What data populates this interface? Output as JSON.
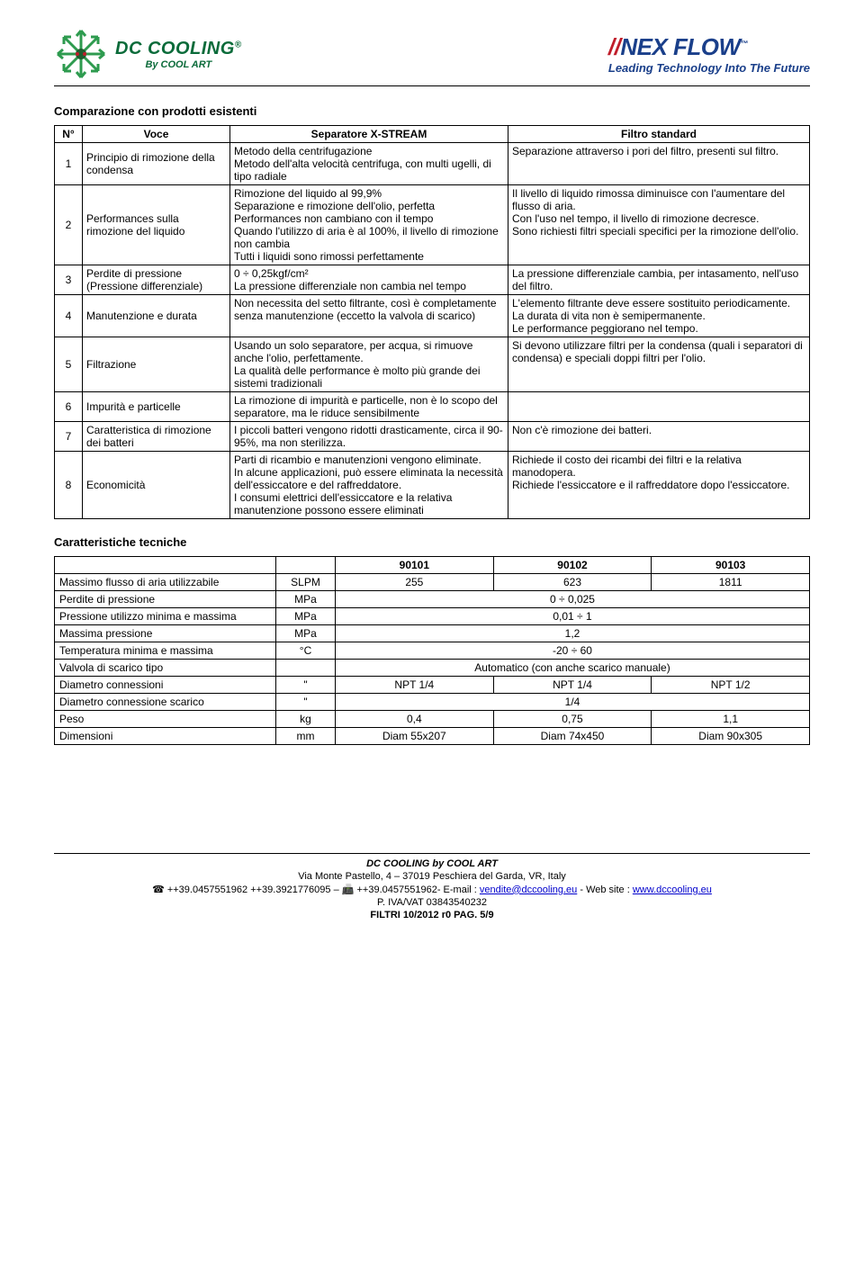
{
  "header": {
    "left_logo_line1": "DC COOLING",
    "left_logo_reg": "®",
    "left_logo_line2": "By COOL ART",
    "right_logo_brand": "NEX FLOW",
    "right_logo_tm": "™",
    "right_logo_tag": "Leading Technology Into The Future",
    "snowflake_color": "#2e9b4f",
    "snowflake_accent": "#c01e2b"
  },
  "section1_title": "Comparazione con prodotti esistenti",
  "section2_title": "Caratteristiche tecniche",
  "table1": {
    "headers": {
      "n": "N°",
      "voce": "Voce",
      "sep": "Separatore X-STREAM",
      "std": "Filtro standard"
    },
    "rows": [
      {
        "n": "1",
        "voce": "Principio di rimozione della condensa",
        "sep": "Metodo della centrifugazione\nMetodo dell'alta velocità centrifuga, con multi ugelli, di tipo radiale",
        "std": "Separazione attraverso i pori del filtro, presenti sul filtro."
      },
      {
        "n": "2",
        "voce": "Performances sulla rimozione del liquido",
        "sep": "Rimozione del liquido al 99,9%\nSeparazione e rimozione dell'olio, perfetta\nPerformances non cambiano con il tempo\nQuando l'utilizzo di aria è al 100%, il livello di rimozione non cambia\nTutti i liquidi sono rimossi perfettamente",
        "std": "Il livello di liquido rimossa diminuisce con l'aumentare del flusso di aria.\nCon l'uso nel tempo, il livello di rimozione decresce.\nSono richiesti filtri speciali specifici per la rimozione dell'olio."
      },
      {
        "n": "3",
        "voce": "Perdite di pressione (Pressione differenziale)",
        "sep": "0 ÷ 0,25kgf/cm²\nLa pressione differenziale non cambia nel tempo",
        "std": "La pressione differenziale cambia, per intasamento, nell'uso del filtro."
      },
      {
        "n": "4",
        "voce": "Manutenzione e durata",
        "sep": "Non necessita del setto filtrante, così è completamente senza manutenzione (eccetto la valvola di scarico)",
        "std": "L'elemento filtrante deve essere sostituito periodicamente.\nLa durata di vita non è semipermanente.\nLe performance peggiorano nel tempo."
      },
      {
        "n": "5",
        "voce": "Filtrazione",
        "sep": "Usando un solo separatore, per acqua, si rimuove anche l'olio, perfettamente.\nLa qualità delle performance è molto più grande dei sistemi tradizionali",
        "std": "Si devono utilizzare filtri per la condensa (quali i separatori di condensa) e speciali doppi filtri per l'olio."
      },
      {
        "n": "6",
        "voce": "Impurità e particelle",
        "sep": "La rimozione di impurità e particelle, non è lo scopo del separatore, ma le riduce sensibilmente",
        "std": ""
      },
      {
        "n": "7",
        "voce": "Caratteristica di rimozione dei batteri",
        "sep": "I piccoli batteri vengono ridotti drasticamente, circa il 90-95%, ma non sterilizza.",
        "std": "Non c'è rimozione dei batteri."
      },
      {
        "n": "8",
        "voce": "Economicità",
        "sep": "Parti di ricambio e manutenzioni vengono eliminate.\nIn alcune applicazioni, può essere eliminata la necessità dell'essiccatore e del raffreddatore.\nI consumi elettrici dell'essiccatore e la relativa manutenzione possono essere eliminati",
        "std": "Richiede il costo dei ricambi dei filtri e la relativa manodopera.\nRichiede l'essiccatore e il raffreddatore dopo l'essiccatore."
      }
    ]
  },
  "table2": {
    "model_headers": [
      "90101",
      "90102",
      "90103"
    ],
    "rows": [
      {
        "label": "Massimo flusso di aria utilizzabile",
        "unit": "SLPM",
        "v": [
          "255",
          "623",
          "1811"
        ]
      },
      {
        "label": "Perdite di pressione",
        "unit": "MPa",
        "span": "0 ÷ 0,025"
      },
      {
        "label": "Pressione utilizzo minima e massima",
        "unit": "MPa",
        "span": "0,01 ÷ 1"
      },
      {
        "label": "Massima pressione",
        "unit": "MPa",
        "span": "1,2"
      },
      {
        "label": "Temperatura minima e massima",
        "unit": "°C",
        "span": "-20 ÷ 60"
      },
      {
        "label": "Valvola di scarico tipo",
        "unit": "",
        "span": "Automatico (con anche scarico manuale)"
      },
      {
        "label": "Diametro connessioni",
        "unit": "\"",
        "v": [
          "NPT 1/4",
          "NPT 1/4",
          "NPT 1/2"
        ]
      },
      {
        "label": "Diametro connessione scarico",
        "unit": "\"",
        "span": "1/4"
      },
      {
        "label": "Peso",
        "unit": "kg",
        "v": [
          "0,4",
          "0,75",
          "1,1"
        ]
      },
      {
        "label": "Dimensioni",
        "unit": "mm",
        "v": [
          "Diam 55x207",
          "Diam 74x450",
          "Diam 90x305"
        ]
      }
    ]
  },
  "footer": {
    "line1": "DC COOLING by COOL ART",
    "line2": "Via Monte Pastello, 4 – 37019 Peschiera del Garda, VR, Italy",
    "line3_a": "☎ ++39.0457551962 ++39.3921776095 – 📠 ++39.0457551962- E-mail : ",
    "email": "vendite@dccooling.eu",
    "line3_b": " - Web site : ",
    "website": "www.dccooling.eu",
    "line4": "P. IVA/VAT 03843540232",
    "line5": "FILTRI 10/2012 r0  PAG. 5/9"
  }
}
